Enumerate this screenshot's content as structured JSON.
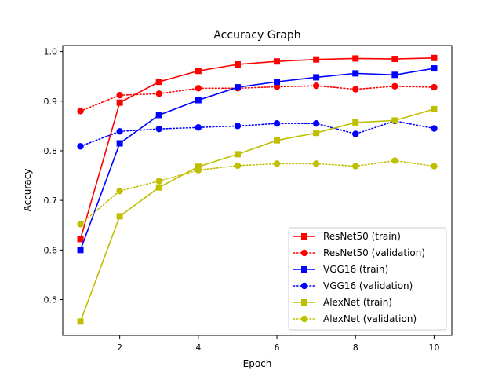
{
  "chart_data": {
    "type": "line",
    "title": "Accuracy Graph",
    "xlabel": "Epoch",
    "ylabel": "Accuracy",
    "xlim": [
      0.55,
      10.45
    ],
    "ylim": [
      0.428,
      1.012
    ],
    "xticks": [
      2,
      4,
      6,
      8,
      10
    ],
    "yticks": [
      0.5,
      0.6,
      0.7,
      0.8,
      0.9,
      1.0
    ],
    "ytick_labels": [
      "0.5",
      "0.6",
      "0.7",
      "0.8",
      "0.9",
      "1.0"
    ],
    "grid": false,
    "legend_position": "lower-right",
    "x": [
      1,
      2,
      3,
      4,
      5,
      6,
      7,
      8,
      9,
      10
    ],
    "series": [
      {
        "name": "ResNet50 (train)",
        "color": "#ff0000",
        "line": "solid",
        "marker": "square",
        "values": [
          0.622,
          0.897,
          0.939,
          0.961,
          0.974,
          0.98,
          0.984,
          0.986,
          0.985,
          0.987
        ]
      },
      {
        "name": "ResNet50 (validation)",
        "color": "#ff0000",
        "line": "dotted",
        "marker": "circle",
        "values": [
          0.88,
          0.912,
          0.915,
          0.926,
          0.926,
          0.929,
          0.931,
          0.924,
          0.93,
          0.928
        ]
      },
      {
        "name": "VGG16 (train)",
        "color": "#0000ff",
        "line": "solid",
        "marker": "square",
        "values": [
          0.6,
          0.815,
          0.872,
          0.902,
          0.928,
          0.939,
          0.948,
          0.956,
          0.953,
          0.966
        ]
      },
      {
        "name": "VGG16 (validation)",
        "color": "#0000ff",
        "line": "dotted",
        "marker": "circle",
        "values": [
          0.809,
          0.839,
          0.844,
          0.847,
          0.85,
          0.855,
          0.855,
          0.834,
          0.86,
          0.845
        ]
      },
      {
        "name": "AlexNet (train)",
        "color": "#bfbf00",
        "line": "solid",
        "marker": "square",
        "values": [
          0.456,
          0.668,
          0.726,
          0.768,
          0.793,
          0.821,
          0.836,
          0.857,
          0.861,
          0.884
        ]
      },
      {
        "name": "AlexNet (validation)",
        "color": "#bfbf00",
        "line": "dotted",
        "marker": "circle",
        "values": [
          0.652,
          0.719,
          0.739,
          0.761,
          0.77,
          0.774,
          0.774,
          0.769,
          0.78,
          0.769
        ]
      }
    ]
  }
}
